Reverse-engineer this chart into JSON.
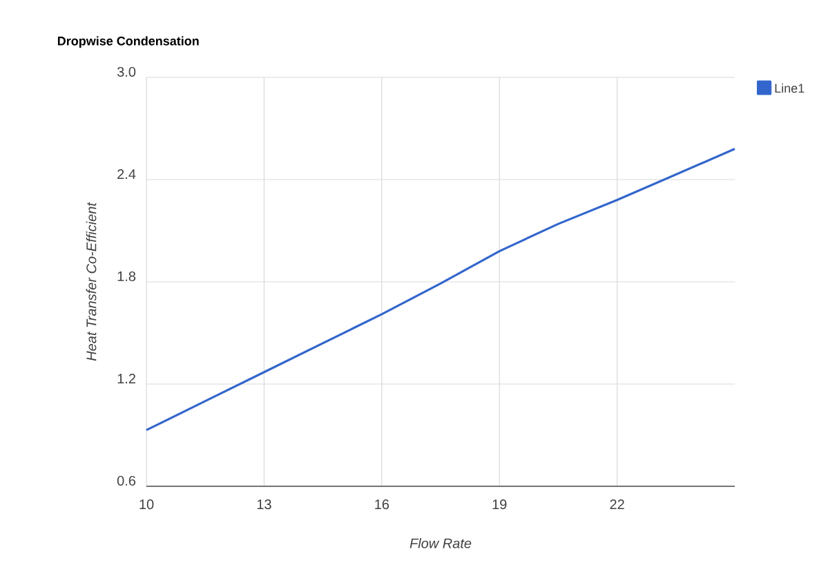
{
  "chart_data": {
    "type": "line",
    "title": "Dropwise Condensation",
    "xlabel": "Flow Rate",
    "ylabel": "Heat Transfer Co-Efficient",
    "x": [
      10,
      11.5,
      13,
      14.5,
      16,
      17.5,
      19,
      20.5,
      22,
      23.5,
      25
    ],
    "series": [
      {
        "name": "Line1",
        "color": "#3366cc",
        "values": [
          0.93,
          1.1,
          1.27,
          1.44,
          1.61,
          1.79,
          1.98,
          2.14,
          2.28,
          2.43,
          2.58
        ]
      }
    ],
    "xlim": [
      10,
      25
    ],
    "ylim": [
      0.6,
      3.0
    ],
    "xticks": [
      10,
      13,
      16,
      19,
      22
    ],
    "yticks": [
      {
        "value": 0.6,
        "label": "0.6"
      },
      {
        "value": 1.2,
        "label": "1.2"
      },
      {
        "value": 1.8,
        "label": "1.8"
      },
      {
        "value": 2.4,
        "label": "2.4"
      },
      {
        "value": 3,
        "label": "3.0"
      }
    ],
    "grid": true,
    "legend": "right",
    "marker": "none",
    "line_style": "solid"
  }
}
